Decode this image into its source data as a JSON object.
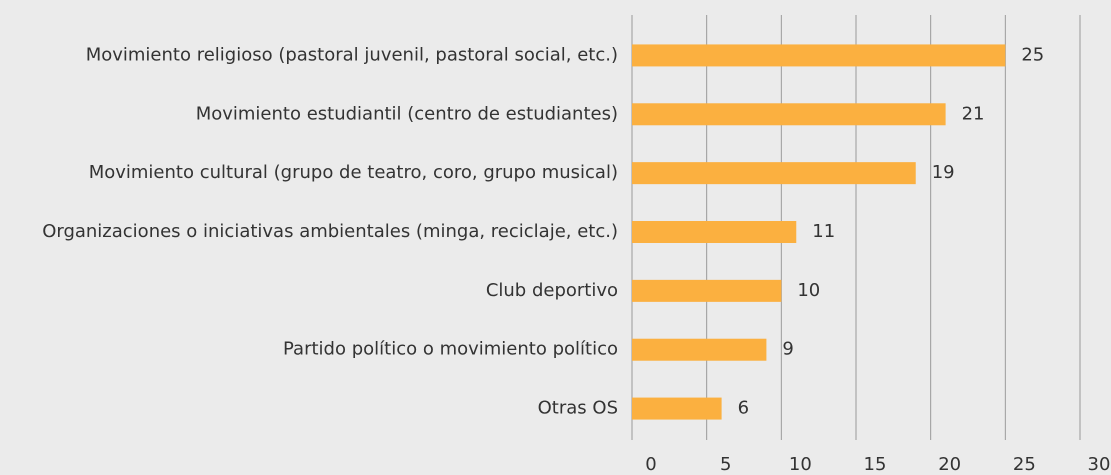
{
  "chart_data": {
    "type": "bar",
    "orientation": "horizontal",
    "categories": [
      "Movimiento religioso (pastoral juvenil, pastoral social, etc.)",
      "Movimiento estudiantil (centro de estudiantes)",
      "Movimiento cultural (grupo de teatro, coro, grupo musical)",
      "Organizaciones o iniciativas ambientales (minga, reciclaje, etc.)",
      "Club deportivo",
      "Partido político o movimiento político",
      "Otras OS"
    ],
    "values": [
      25,
      21,
      19,
      11,
      10,
      9,
      6
    ],
    "color": "#fbb040",
    "xlim": [
      0,
      30
    ],
    "xticks": [
      0,
      5,
      10,
      15,
      20,
      25,
      30
    ],
    "grid": true
  }
}
